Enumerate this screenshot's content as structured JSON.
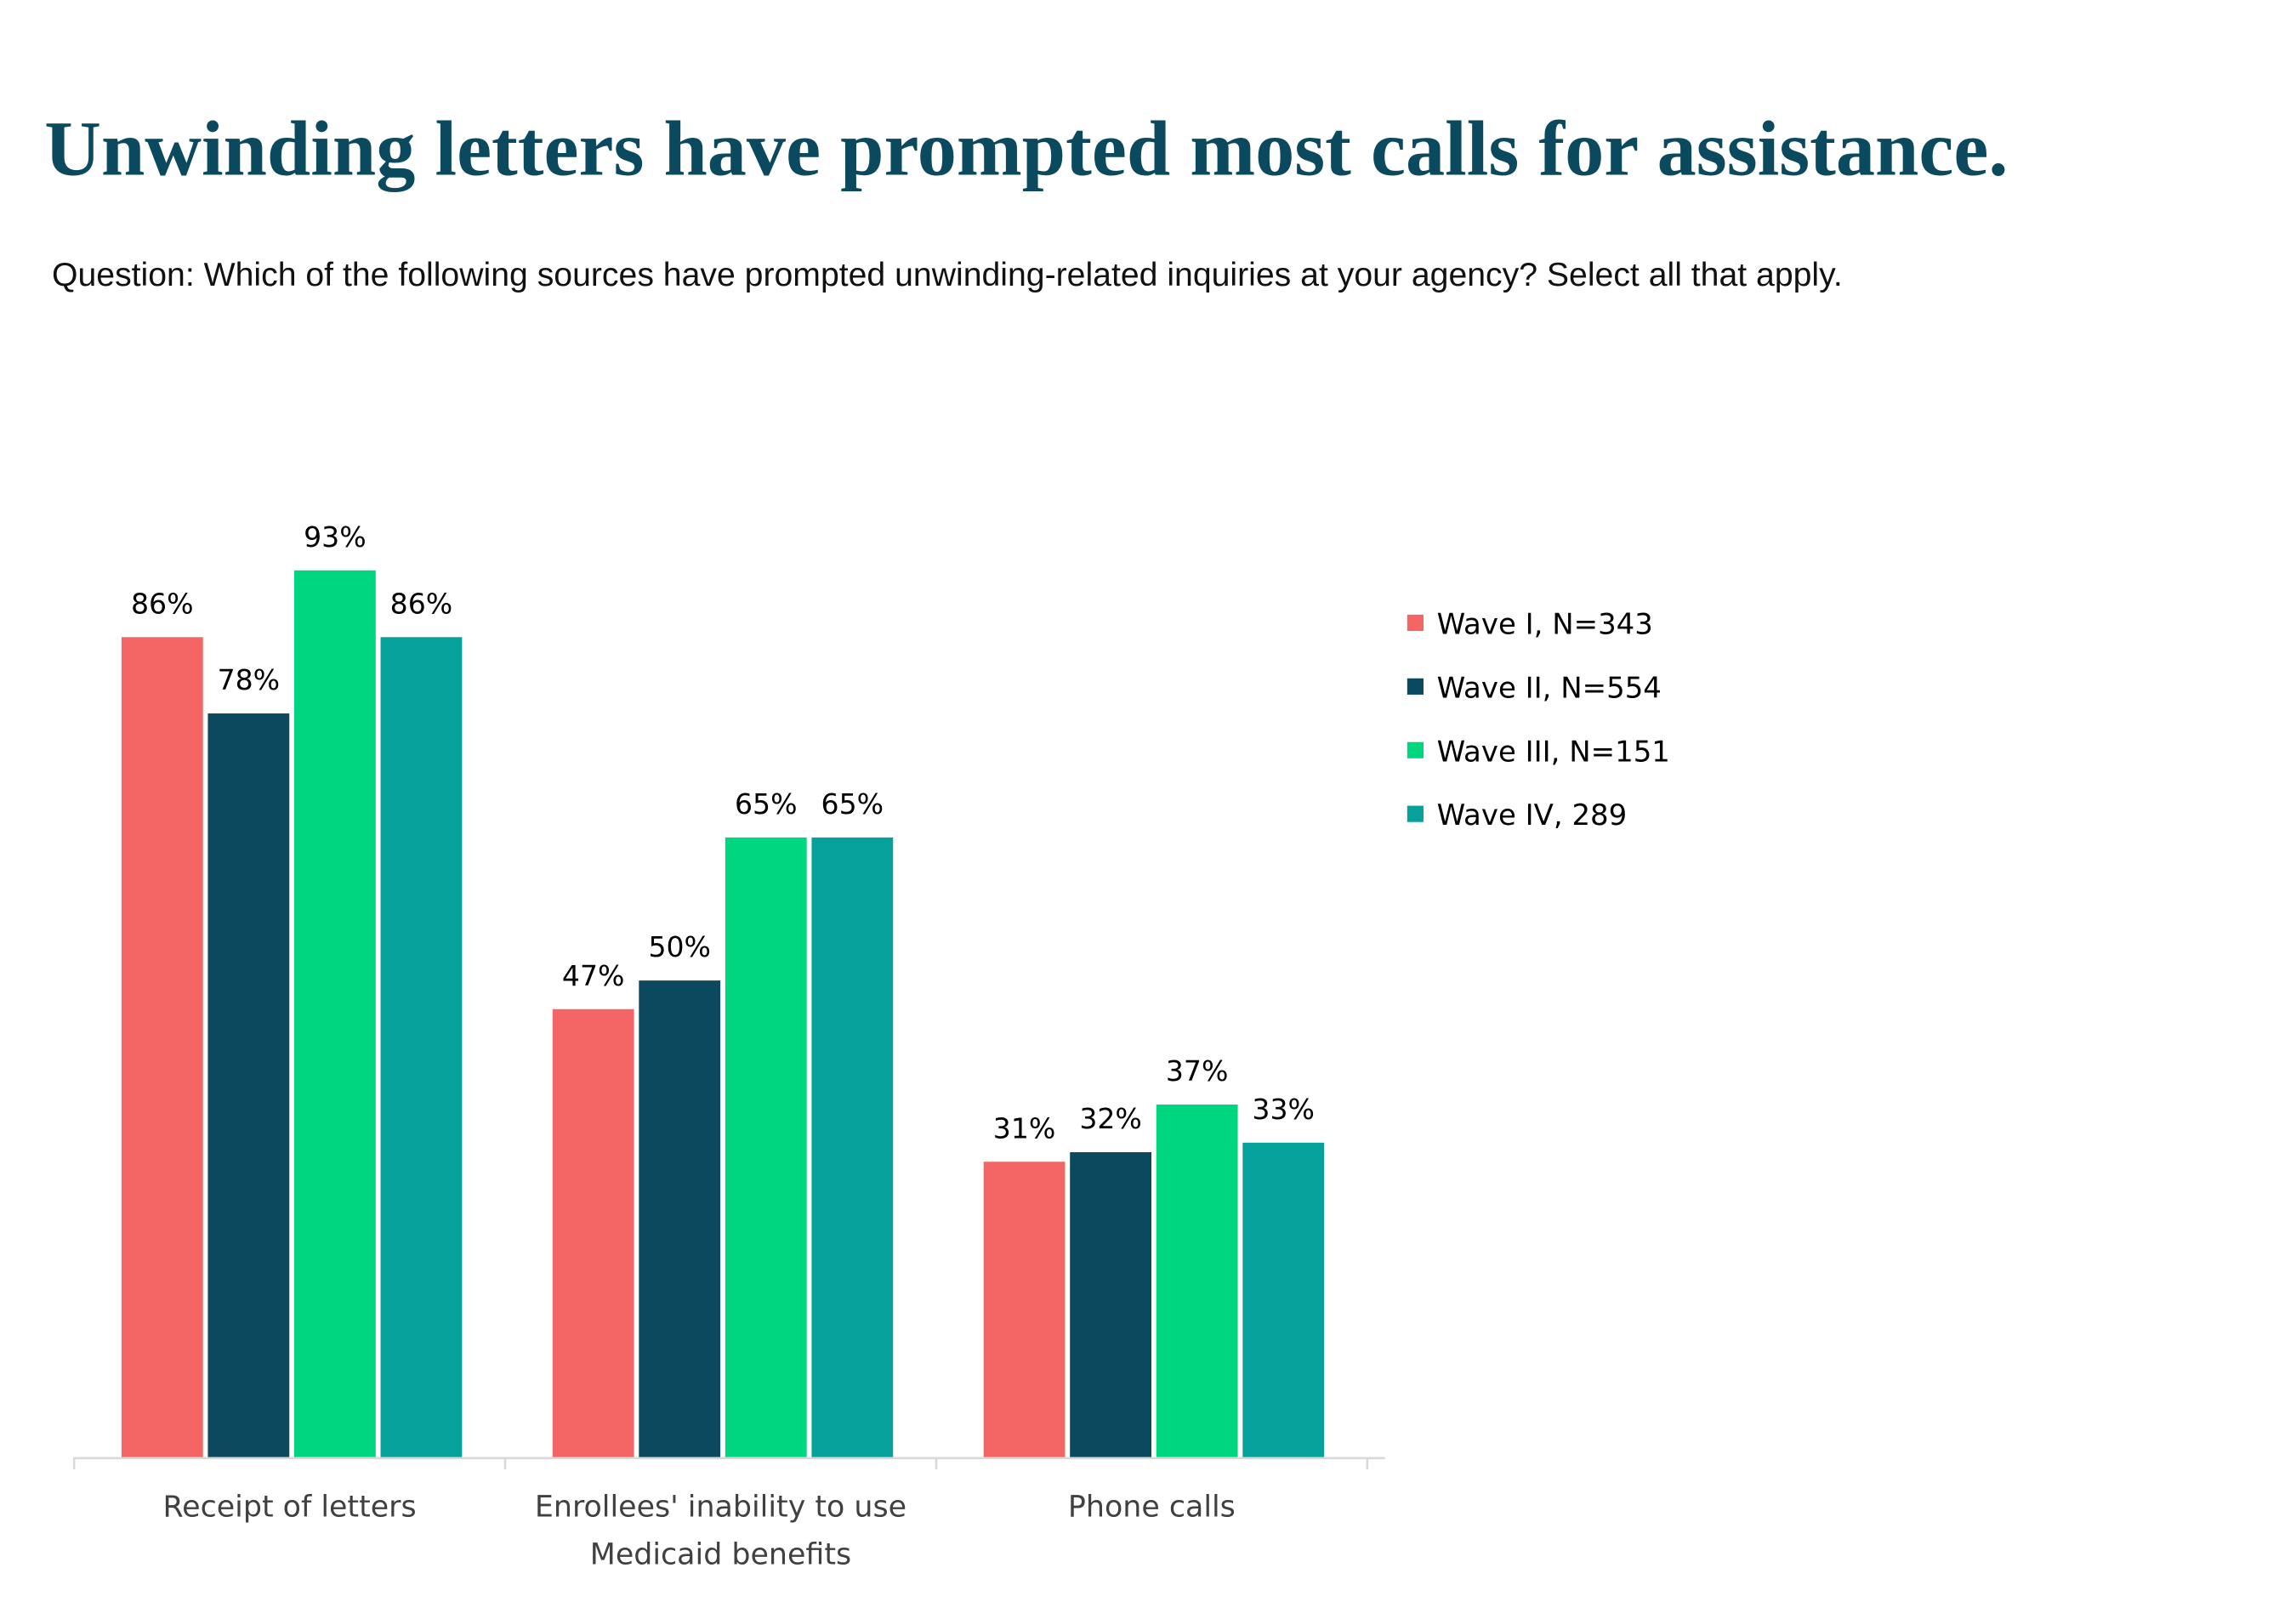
{
  "chart_data": {
    "type": "bar",
    "title": "Unwinding letters have prompted most calls for assistance.",
    "subtitle": "Question: Which of the following sources have prompted unwinding-related inquiries at your agency? Select all that apply.",
    "categories": [
      [
        "Receipt of letters"
      ],
      [
        "Enrollees' inability to use",
        "Medicaid benefits"
      ],
      [
        "Phone calls"
      ]
    ],
    "series": [
      {
        "name": "Wave I, N=343",
        "color": "#f46666",
        "values": [
          86,
          47,
          31
        ]
      },
      {
        "name": "Wave II, N=554",
        "color": "#0b4a5e",
        "values": [
          78,
          50,
          32
        ]
      },
      {
        "name": "Wave III, N=151",
        "color": "#00d67f",
        "values": [
          93,
          65,
          37
        ]
      },
      {
        "name": "Wave IV, 289",
        "color": "#07a19c",
        "values": [
          86,
          65,
          33
        ]
      }
    ],
    "value_format": "percent",
    "ylim": [
      0,
      100
    ],
    "y_axis_visible": false,
    "grid": false,
    "legend_position": "right"
  }
}
